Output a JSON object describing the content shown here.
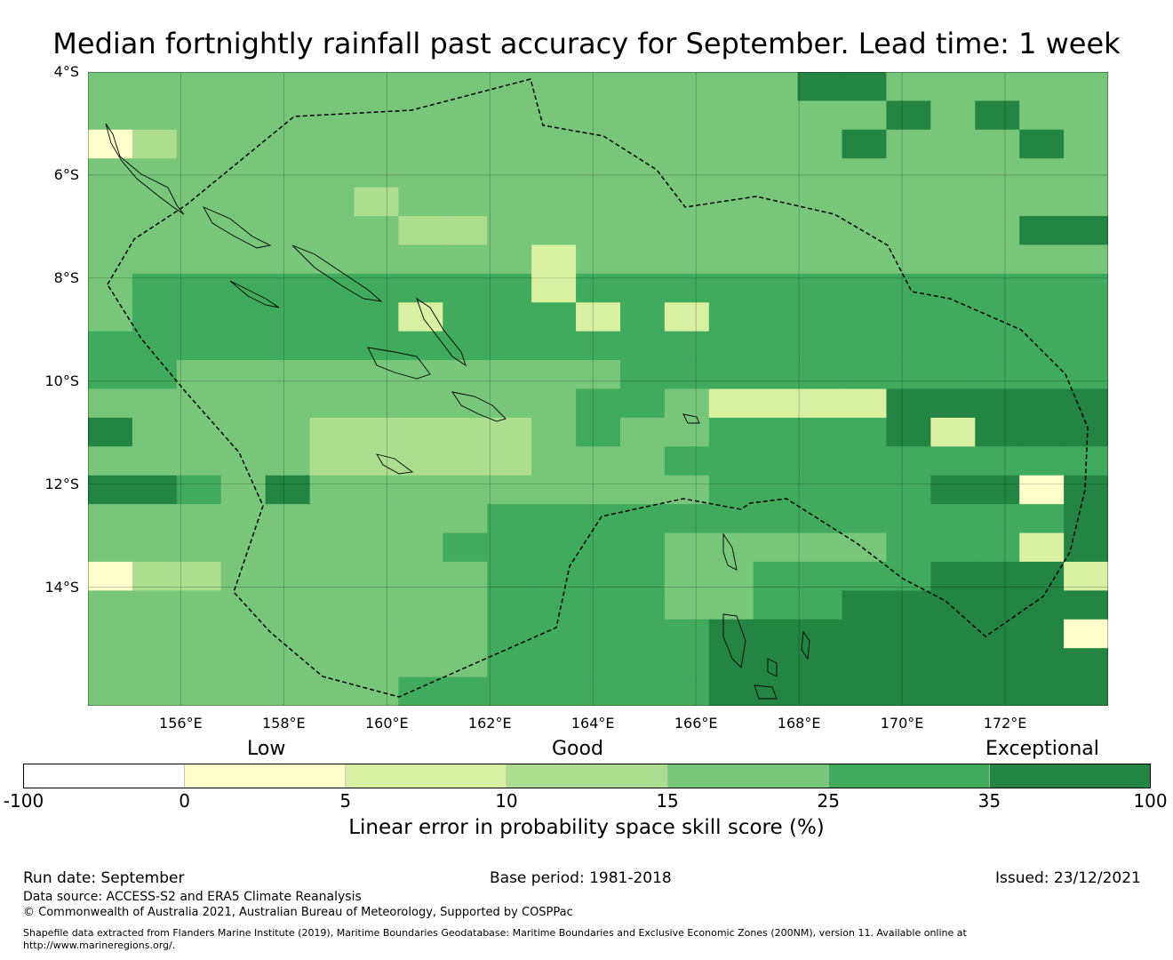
{
  "title": "Median fortnightly rainfall past accuracy for September. Lead time: 1 week",
  "map": {
    "lat_labels": [
      "4°S",
      "6°S",
      "8°S",
      "10°S",
      "12°S",
      "14°S"
    ],
    "lon_labels": [
      "156°E",
      "158°E",
      "160°E",
      "162°E",
      "164°E",
      "166°E",
      "168°E",
      "170°E",
      "172°E"
    ],
    "lon_range": [
      154.2,
      174.0
    ],
    "lat_range": [
      -4.0,
      -16.3
    ],
    "grid_lon": [
      156,
      158,
      160,
      162,
      164,
      166,
      168,
      170,
      172
    ],
    "grid_lat": [
      -4,
      -6,
      -8,
      -10,
      -12,
      -14
    ],
    "cell_rows": [
      "44444445555555666666666",
      "44444444455555666666666",
      "44444444455555666666666",
      "44444444455554455666666",
      "13344444455554455556666",
      "44444444555554444455556",
      "44444444455555555555556",
      "55544444444444555556666",
      "44444333334445555555555",
      "44444333334544555566666",
      "44444444444554444566666",
      "55444444444455555555555",
      "55555555555555555555555",
      "45555555555555555555555",
      "45555555555555555555555",
      "44444444444444444444444",
      "44444444444444444444444",
      "44444444444444444444444",
      "44444444444444444444444",
      "44444444444444444444444",
      "44444444444444444444444",
      "44444444444444444444444"
    ],
    "overrides": [
      {
        "lon": 154.6,
        "lat": -5.2,
        "v": 1
      },
      {
        "lon": 155.5,
        "lat": -5.2,
        "v": 3
      },
      {
        "lon": 159.5,
        "lat": -6.7,
        "v": 3
      },
      {
        "lon": 160.5,
        "lat": -7.2,
        "v": 3
      },
      {
        "lon": 161.5,
        "lat": -7.2,
        "v": 3
      },
      {
        "lon": 163.0,
        "lat": -7.8,
        "v": 2
      },
      {
        "lon": 163.5,
        "lat": -8.3,
        "v": 2
      },
      {
        "lon": 163.8,
        "lat": -8.9,
        "v": 1
      },
      {
        "lon": 164.5,
        "lat": -8.9,
        "v": 2
      },
      {
        "lon": 165.5,
        "lat": -8.9,
        "v": 2
      },
      {
        "lon": 161.0,
        "lat": -8.9,
        "v": 2
      },
      {
        "lon": 166.5,
        "lat": -10.5,
        "v": 2
      },
      {
        "lon": 167.5,
        "lat": -10.5,
        "v": 2
      },
      {
        "lon": 168.5,
        "lat": -10.5,
        "v": 2
      },
      {
        "lon": 169.5,
        "lat": -10.5,
        "v": 2
      },
      {
        "lon": 172.5,
        "lat": -12.0,
        "v": 1
      },
      {
        "lon": 173.2,
        "lat": -15.0,
        "v": 1
      },
      {
        "lon": 172.5,
        "lat": -13.5,
        "v": 2
      },
      {
        "lon": 173.2,
        "lat": -14.0,
        "v": 2
      },
      {
        "lon": 171.2,
        "lat": -11.0,
        "v": 2
      },
      {
        "lon": 154.5,
        "lat": -12.0,
        "v": 6
      },
      {
        "lon": 155.5,
        "lat": -12.0,
        "v": 6
      },
      {
        "lon": 158.0,
        "lat": -12.0,
        "v": 6
      },
      {
        "lon": 155.0,
        "lat": -11.0,
        "v": 6
      },
      {
        "lon": 172.5,
        "lat": -7.0,
        "v": 6
      },
      {
        "lon": 173.5,
        "lat": -7.0,
        "v": 6
      },
      {
        "lon": 168.5,
        "lat": -4.5,
        "v": 6
      },
      {
        "lon": 169.5,
        "lat": -4.5,
        "v": 6
      },
      {
        "lon": 170.5,
        "lat": -5.0,
        "v": 6
      },
      {
        "lon": 171.5,
        "lat": -5.0,
        "v": 6
      },
      {
        "lon": 172.5,
        "lat": -5.5,
        "v": 6
      },
      {
        "lon": 169.5,
        "lat": -5.5,
        "v": 6
      }
    ]
  },
  "legend": {
    "categories": [
      "Low",
      "Good",
      "Exceptional"
    ],
    "colors": [
      "#ffffff",
      "#ffffcc",
      "#d9f0a3",
      "#addd8e",
      "#78c679",
      "#41ab5d",
      "#238443"
    ],
    "ticks": [
      "-100",
      "0",
      "5",
      "10",
      "15",
      "25",
      "35",
      "100"
    ],
    "label": "Linear error in probability space skill score (%)"
  },
  "footer": {
    "run_date": "Run date: September",
    "base_period": "Base period: 1981-2018",
    "issued": "Issued: 23/12/2021",
    "data_source": "Data source: ACCESS-S2 and ERA5 Climate Reanalysis",
    "copyright": "© Commonwealth of Australia 2021, Australian Bureau of Meteorology, Supported by COSPPac",
    "shapefile_line1": "Shapefile data extracted from Flanders Marine Institute (2019), Maritime Boundaries Geodatabase: Maritime Boundaries and Exclusive Economic Zones (200NM), version 11. Available online at",
    "shapefile_line2": "http://www.marineregions.org/."
  }
}
